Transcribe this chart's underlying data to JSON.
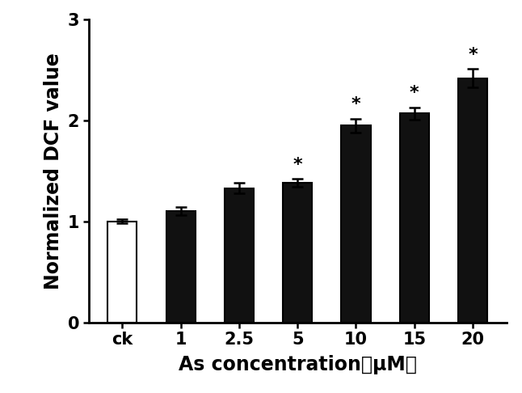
{
  "categories": [
    "ck",
    "1",
    "2.5",
    "5",
    "10",
    "15",
    "20"
  ],
  "values": [
    1.0,
    1.1,
    1.33,
    1.38,
    1.95,
    2.07,
    2.42
  ],
  "errors": [
    0.02,
    0.04,
    0.05,
    0.04,
    0.07,
    0.06,
    0.09
  ],
  "bar_colors": [
    "#ffffff",
    "#111111",
    "#111111",
    "#111111",
    "#111111",
    "#111111",
    "#111111"
  ],
  "bar_edge_colors": [
    "#000000",
    "#000000",
    "#000000",
    "#000000",
    "#000000",
    "#000000",
    "#000000"
  ],
  "significance": [
    false,
    false,
    false,
    true,
    true,
    true,
    true
  ],
  "ylabel": "Normalized DCF value",
  "xlabel": "As concentration（μM）",
  "ylim": [
    0,
    3.0
  ],
  "yticks": [
    0,
    1,
    2,
    3
  ],
  "background_color": "#ffffff",
  "bar_width": 0.5,
  "axis_fontsize": 17,
  "tick_fontsize": 15,
  "star_fontsize": 16,
  "figure_width": 6.46,
  "figure_height": 4.86,
  "dpi": 100
}
